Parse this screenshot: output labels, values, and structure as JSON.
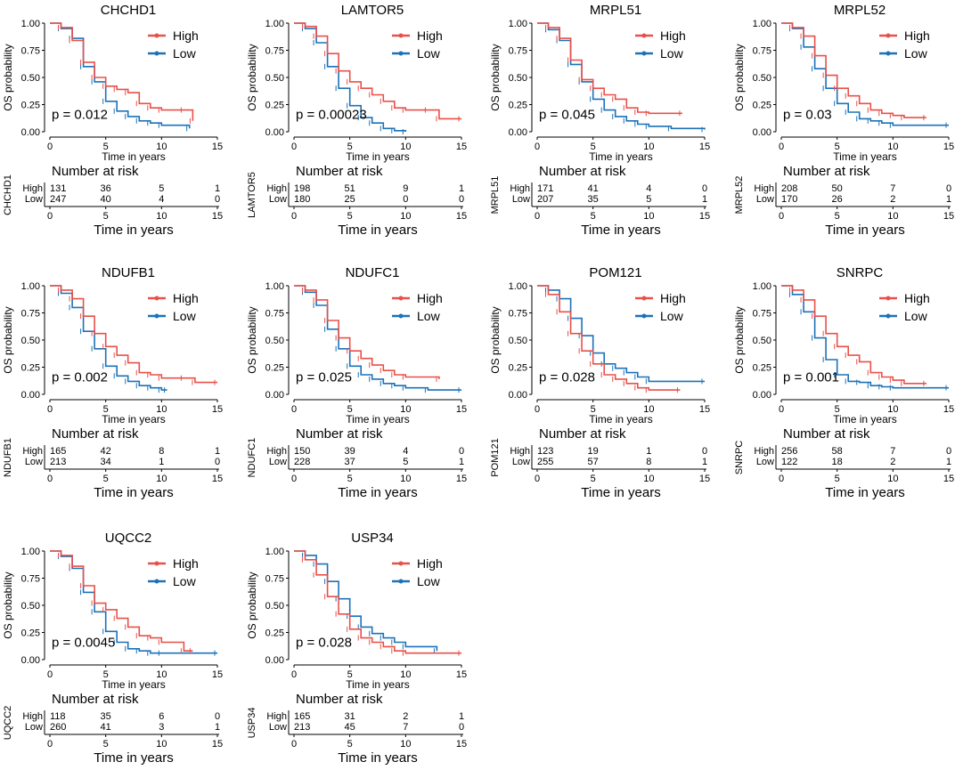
{
  "chart_data": {
    "type": "line",
    "panels": [
      {
        "gene": "CHCHD1",
        "p_text": "p = 0.012",
        "risk_high": [
          131,
          36,
          5,
          1
        ],
        "risk_low": [
          247,
          40,
          4,
          0
        ],
        "high_end": 12.8,
        "low_end": 12.5,
        "high": [
          [
            0,
            1
          ],
          [
            1,
            0.96
          ],
          [
            2,
            0.84
          ],
          [
            3,
            0.64
          ],
          [
            4,
            0.5
          ],
          [
            5,
            0.42
          ],
          [
            6,
            0.39
          ],
          [
            7,
            0.36
          ],
          [
            8,
            0.26
          ],
          [
            9,
            0.22
          ],
          [
            10,
            0.2
          ],
          [
            12,
            0.2
          ],
          [
            12.8,
            0.1
          ]
        ],
        "low": [
          [
            0,
            1
          ],
          [
            1,
            0.95
          ],
          [
            2,
            0.86
          ],
          [
            3,
            0.6
          ],
          [
            4,
            0.46
          ],
          [
            5,
            0.28
          ],
          [
            6,
            0.19
          ],
          [
            7,
            0.14
          ],
          [
            8,
            0.1
          ],
          [
            9,
            0.08
          ],
          [
            10,
            0.06
          ],
          [
            12.5,
            0.03
          ]
        ]
      },
      {
        "gene": "LAMTOR5",
        "p_text": "p = 0.00023",
        "risk_high": [
          198,
          51,
          9,
          1
        ],
        "risk_low": [
          180,
          25,
          0,
          0
        ],
        "high_end": 15,
        "low_end": 10,
        "high": [
          [
            0,
            1
          ],
          [
            1,
            0.97
          ],
          [
            2,
            0.88
          ],
          [
            3,
            0.72
          ],
          [
            4,
            0.56
          ],
          [
            5,
            0.46
          ],
          [
            6,
            0.4
          ],
          [
            7,
            0.34
          ],
          [
            8,
            0.28
          ],
          [
            9,
            0.22
          ],
          [
            10,
            0.2
          ],
          [
            12,
            0.2
          ],
          [
            13,
            0.12
          ],
          [
            15,
            0.12
          ]
        ],
        "low": [
          [
            0,
            1
          ],
          [
            1,
            0.95
          ],
          [
            2,
            0.82
          ],
          [
            3,
            0.6
          ],
          [
            4,
            0.4
          ],
          [
            5,
            0.24
          ],
          [
            6,
            0.13
          ],
          [
            7,
            0.08
          ],
          [
            8,
            0.03
          ],
          [
            9,
            0.01
          ],
          [
            10,
            0
          ]
        ]
      },
      {
        "gene": "MRPL51",
        "p_text": "p = 0.045",
        "risk_high": [
          171,
          41,
          4,
          0
        ],
        "risk_low": [
          207,
          35,
          5,
          1
        ],
        "high_end": 13,
        "low_end": 15,
        "high": [
          [
            0,
            1
          ],
          [
            1,
            0.96
          ],
          [
            2,
            0.86
          ],
          [
            3,
            0.66
          ],
          [
            4,
            0.48
          ],
          [
            5,
            0.4
          ],
          [
            6,
            0.34
          ],
          [
            7,
            0.3
          ],
          [
            8,
            0.22
          ],
          [
            9,
            0.18
          ],
          [
            10,
            0.17
          ],
          [
            13,
            0.17
          ]
        ],
        "low": [
          [
            0,
            1
          ],
          [
            1,
            0.94
          ],
          [
            2,
            0.84
          ],
          [
            3,
            0.62
          ],
          [
            4,
            0.46
          ],
          [
            5,
            0.3
          ],
          [
            6,
            0.2
          ],
          [
            7,
            0.14
          ],
          [
            8,
            0.1
          ],
          [
            9,
            0.07
          ],
          [
            10,
            0.05
          ],
          [
            12,
            0.03
          ],
          [
            15,
            0.02
          ]
        ]
      },
      {
        "gene": "MRPL52",
        "p_text": "p = 0.03",
        "risk_high": [
          208,
          50,
          7,
          0
        ],
        "risk_low": [
          170,
          26,
          2,
          1
        ],
        "high_end": 13,
        "low_end": 15,
        "high": [
          [
            0,
            1
          ],
          [
            1,
            0.96
          ],
          [
            2,
            0.88
          ],
          [
            3,
            0.7
          ],
          [
            4,
            0.52
          ],
          [
            5,
            0.4
          ],
          [
            6,
            0.33
          ],
          [
            7,
            0.26
          ],
          [
            8,
            0.2
          ],
          [
            9,
            0.17
          ],
          [
            10,
            0.15
          ],
          [
            11,
            0.13
          ],
          [
            13,
            0.13
          ]
        ],
        "low": [
          [
            0,
            1
          ],
          [
            1,
            0.95
          ],
          [
            2,
            0.78
          ],
          [
            3,
            0.58
          ],
          [
            4,
            0.4
          ],
          [
            5,
            0.26
          ],
          [
            6,
            0.18
          ],
          [
            7,
            0.12
          ],
          [
            8,
            0.1
          ],
          [
            9,
            0.08
          ],
          [
            10,
            0.06
          ],
          [
            15,
            0.06
          ]
        ]
      },
      {
        "gene": "NDUFB1",
        "p_text": "p = 0.002",
        "risk_high": [
          165,
          42,
          8,
          1
        ],
        "risk_low": [
          213,
          34,
          1,
          0
        ],
        "high_end": 15,
        "low_end": 10.5,
        "high": [
          [
            0,
            1
          ],
          [
            1,
            0.96
          ],
          [
            2,
            0.88
          ],
          [
            3,
            0.72
          ],
          [
            4,
            0.56
          ],
          [
            5,
            0.44
          ],
          [
            6,
            0.36
          ],
          [
            7,
            0.29
          ],
          [
            8,
            0.2
          ],
          [
            9,
            0.18
          ],
          [
            10,
            0.15
          ],
          [
            12,
            0.15
          ],
          [
            13,
            0.11
          ],
          [
            15,
            0.11
          ]
        ],
        "low": [
          [
            0,
            1
          ],
          [
            1,
            0.93
          ],
          [
            2,
            0.8
          ],
          [
            3,
            0.58
          ],
          [
            4,
            0.42
          ],
          [
            5,
            0.26
          ],
          [
            6,
            0.17
          ],
          [
            7,
            0.12
          ],
          [
            8,
            0.08
          ],
          [
            9,
            0.06
          ],
          [
            10,
            0.04
          ],
          [
            10.5,
            0.04
          ]
        ]
      },
      {
        "gene": "NDUFC1",
        "p_text": "p = 0.025",
        "risk_high": [
          150,
          39,
          4,
          0
        ],
        "risk_low": [
          228,
          37,
          5,
          1
        ],
        "high_end": 13,
        "low_end": 15,
        "high": [
          [
            0,
            1
          ],
          [
            1,
            0.96
          ],
          [
            2,
            0.87
          ],
          [
            3,
            0.68
          ],
          [
            4,
            0.52
          ],
          [
            5,
            0.4
          ],
          [
            6,
            0.33
          ],
          [
            7,
            0.27
          ],
          [
            8,
            0.22
          ],
          [
            9,
            0.18
          ],
          [
            10,
            0.16
          ],
          [
            13,
            0.14
          ]
        ],
        "low": [
          [
            0,
            1
          ],
          [
            1,
            0.94
          ],
          [
            2,
            0.82
          ],
          [
            3,
            0.6
          ],
          [
            4,
            0.42
          ],
          [
            5,
            0.26
          ],
          [
            6,
            0.18
          ],
          [
            7,
            0.14
          ],
          [
            8,
            0.1
          ],
          [
            9,
            0.08
          ],
          [
            10,
            0.06
          ],
          [
            12,
            0.04
          ],
          [
            15,
            0.04
          ]
        ]
      },
      {
        "gene": "POM121",
        "p_text": "p = 0.028",
        "risk_high": [
          123,
          19,
          1,
          0
        ],
        "risk_low": [
          255,
          57,
          8,
          1
        ],
        "high_end": 12.8,
        "low_end": 15,
        "high": [
          [
            0,
            1
          ],
          [
            1,
            0.92
          ],
          [
            2,
            0.76
          ],
          [
            3,
            0.56
          ],
          [
            4,
            0.4
          ],
          [
            5,
            0.28
          ],
          [
            6,
            0.18
          ],
          [
            7,
            0.14
          ],
          [
            8,
            0.1
          ],
          [
            9,
            0.06
          ],
          [
            10,
            0.04
          ],
          [
            12.8,
            0.04
          ]
        ],
        "low": [
          [
            0,
            1
          ],
          [
            1,
            0.96
          ],
          [
            2,
            0.88
          ],
          [
            3,
            0.7
          ],
          [
            4,
            0.54
          ],
          [
            5,
            0.38
          ],
          [
            6,
            0.28
          ],
          [
            7,
            0.24
          ],
          [
            8,
            0.2
          ],
          [
            9,
            0.16
          ],
          [
            10,
            0.12
          ],
          [
            15,
            0.12
          ]
        ]
      },
      {
        "gene": "SNRPC",
        "p_text": "p = 0.001",
        "risk_high": [
          256,
          58,
          7,
          0
        ],
        "risk_low": [
          122,
          18,
          2,
          1
        ],
        "high_end": 13,
        "low_end": 15,
        "high": [
          [
            0,
            1
          ],
          [
            1,
            0.96
          ],
          [
            2,
            0.87
          ],
          [
            3,
            0.72
          ],
          [
            4,
            0.56
          ],
          [
            5,
            0.44
          ],
          [
            6,
            0.36
          ],
          [
            7,
            0.3
          ],
          [
            8,
            0.2
          ],
          [
            9,
            0.16
          ],
          [
            10,
            0.13
          ],
          [
            11,
            0.1
          ],
          [
            13,
            0.1
          ]
        ],
        "low": [
          [
            0,
            1
          ],
          [
            1,
            0.92
          ],
          [
            2,
            0.76
          ],
          [
            3,
            0.52
          ],
          [
            4,
            0.32
          ],
          [
            5,
            0.18
          ],
          [
            6,
            0.12
          ],
          [
            7,
            0.11
          ],
          [
            8,
            0.08
          ],
          [
            9,
            0.07
          ],
          [
            10,
            0.06
          ],
          [
            15,
            0.06
          ]
        ]
      },
      {
        "gene": "UQCC2",
        "p_text": "p = 0.0045",
        "risk_high": [
          118,
          35,
          6,
          0
        ],
        "risk_low": [
          260,
          41,
          3,
          1
        ],
        "high_end": 12.8,
        "low_end": 15,
        "high": [
          [
            0,
            1
          ],
          [
            1,
            0.96
          ],
          [
            2,
            0.86
          ],
          [
            3,
            0.68
          ],
          [
            4,
            0.52
          ],
          [
            5,
            0.46
          ],
          [
            6,
            0.38
          ],
          [
            7,
            0.3
          ],
          [
            8,
            0.22
          ],
          [
            9,
            0.2
          ],
          [
            10,
            0.16
          ],
          [
            12,
            0.08
          ],
          [
            12.8,
            0.08
          ]
        ],
        "low": [
          [
            0,
            1
          ],
          [
            1,
            0.95
          ],
          [
            2,
            0.84
          ],
          [
            3,
            0.62
          ],
          [
            4,
            0.44
          ],
          [
            5,
            0.26
          ],
          [
            6,
            0.16
          ],
          [
            7,
            0.1
          ],
          [
            8,
            0.08
          ],
          [
            9,
            0.06
          ],
          [
            10,
            0.06
          ],
          [
            15,
            0.06
          ]
        ]
      },
      {
        "gene": "USP34",
        "p_text": "p = 0.028",
        "risk_high": [
          165,
          31,
          2,
          1
        ],
        "risk_low": [
          213,
          45,
          7,
          0
        ],
        "high_end": 15,
        "low_end": 12.8,
        "high": [
          [
            0,
            1
          ],
          [
            1,
            0.92
          ],
          [
            2,
            0.78
          ],
          [
            3,
            0.58
          ],
          [
            4,
            0.42
          ],
          [
            5,
            0.28
          ],
          [
            6,
            0.2
          ],
          [
            7,
            0.16
          ],
          [
            8,
            0.12
          ],
          [
            9,
            0.08
          ],
          [
            10,
            0.06
          ],
          [
            15,
            0.06
          ]
        ],
        "low": [
          [
            0,
            1
          ],
          [
            1,
            0.96
          ],
          [
            2,
            0.88
          ],
          [
            3,
            0.72
          ],
          [
            4,
            0.56
          ],
          [
            5,
            0.4
          ],
          [
            6,
            0.3
          ],
          [
            7,
            0.24
          ],
          [
            8,
            0.2
          ],
          [
            9,
            0.16
          ],
          [
            10,
            0.12
          ],
          [
            12.8,
            0.08
          ]
        ]
      }
    ],
    "ylabel": "OS probability",
    "xlabel_small": "Time in years",
    "xlabel_risk": "Time in years",
    "risk_title": "Number at risk",
    "legend": [
      "High",
      "Low"
    ],
    "risk_row_labels": [
      "High",
      "Low"
    ],
    "xticks": [
      0,
      5,
      10,
      15
    ],
    "yticks": [
      "0.00",
      "0.25",
      "0.50",
      "0.75",
      "1.00"
    ],
    "xlim": [
      0,
      15
    ],
    "ylim": [
      0,
      1
    ],
    "colors": {
      "high": "#E8504A",
      "low": "#1C72B8"
    }
  }
}
